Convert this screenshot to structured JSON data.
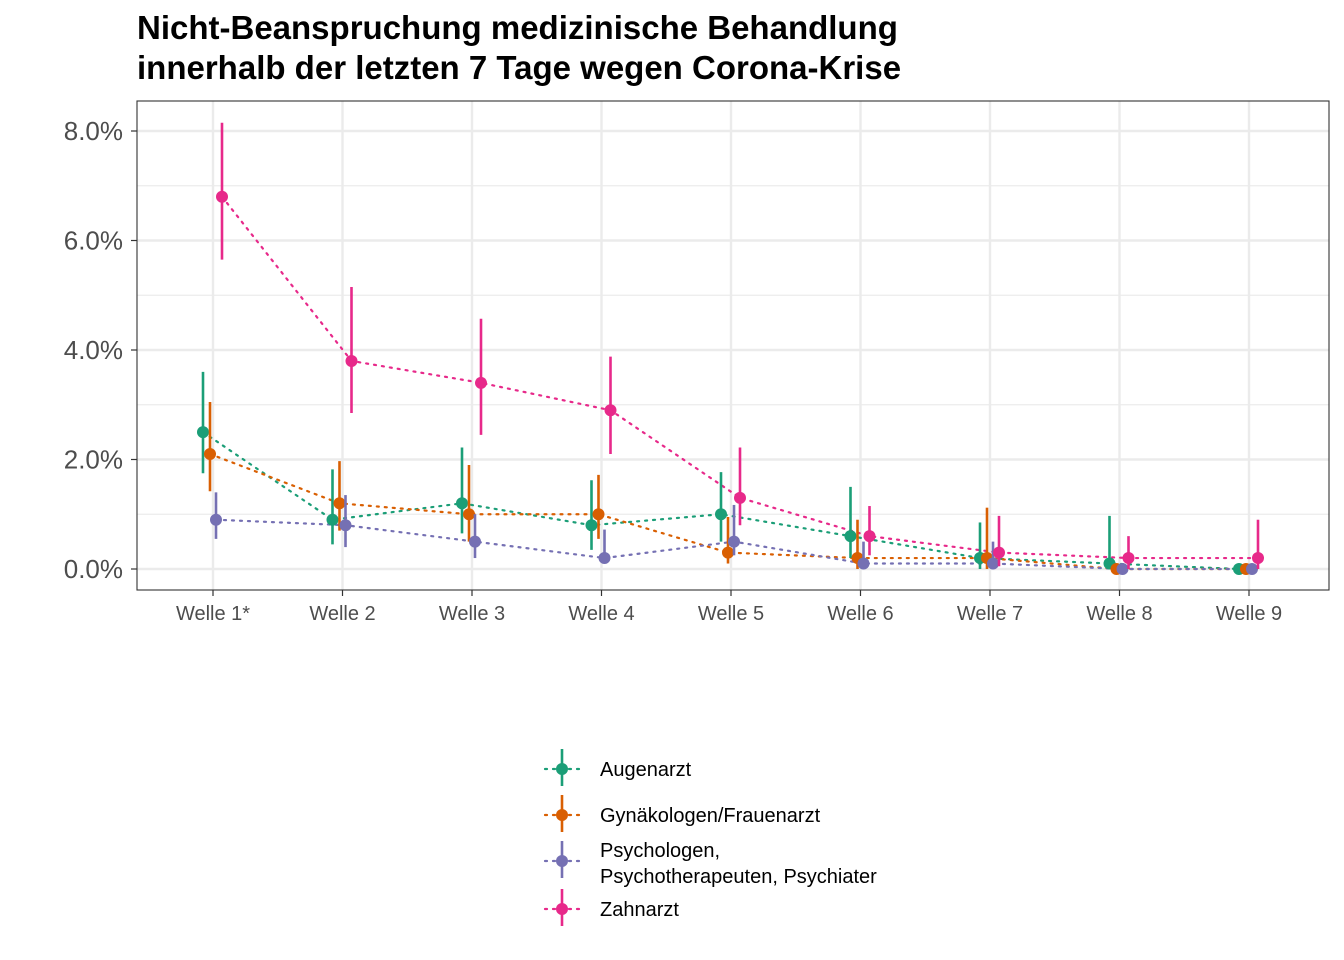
{
  "title_line1": "Nicht-Beanspruchung medizinische Behandlung",
  "title_line2": "innerhalb der letzten 7 Tage wegen Corona-Krise",
  "chart_data": {
    "type": "line",
    "categories": [
      "Welle 1*",
      "Welle 2",
      "Welle 3",
      "Welle 4",
      "Welle 5",
      "Welle 6",
      "Welle 7",
      "Welle 8",
      "Welle 9"
    ],
    "y_ticks": [
      "0.0%",
      "2.0%",
      "4.0%",
      "6.0%",
      "8.0%"
    ],
    "y_tick_values": [
      0,
      2,
      4,
      6,
      8
    ],
    "ylim": [
      -0.4,
      8.5
    ],
    "y_unit": "%",
    "grid": true,
    "legend_position": "bottom",
    "line_style": "dotted",
    "error_bars": true,
    "series": [
      {
        "name": "Augenarzt",
        "color": "#1b9e77",
        "values": [
          2.5,
          0.9,
          1.2,
          0.8,
          1.0,
          0.6,
          0.2,
          0.1,
          0.0
        ],
        "lower": [
          1.75,
          0.45,
          0.65,
          0.35,
          0.5,
          0.2,
          0.0,
          0.0,
          0.0
        ],
        "upper": [
          3.6,
          1.82,
          2.22,
          1.62,
          1.77,
          1.5,
          0.85,
          0.97,
          0.05
        ]
      },
      {
        "name": "Gynäkologen/Frauenarzt",
        "color": "#d95f02",
        "values": [
          2.1,
          1.2,
          1.0,
          1.0,
          0.3,
          0.2,
          0.2,
          0.0,
          0.0
        ],
        "lower": [
          1.42,
          0.7,
          0.5,
          0.55,
          0.1,
          0.0,
          0.0,
          0.0,
          0.0
        ],
        "upper": [
          3.05,
          1.97,
          1.9,
          1.72,
          0.95,
          0.9,
          1.12,
          0.05,
          0.05
        ]
      },
      {
        "name": "Psychologen,\nPsychotherapeuten, Psychiater",
        "name_lines": [
          "Psychologen,",
          "Psychotherapeuten, Psychiater"
        ],
        "color": "#7570b3",
        "values": [
          0.9,
          0.8,
          0.5,
          0.2,
          0.5,
          0.1,
          0.1,
          0.0,
          0.0
        ],
        "lower": [
          0.55,
          0.4,
          0.2,
          0.1,
          0.25,
          0.0,
          0.0,
          0.0,
          0.0
        ],
        "upper": [
          1.4,
          1.35,
          1.0,
          0.72,
          1.17,
          0.5,
          0.5,
          0.05,
          0.05
        ]
      },
      {
        "name": "Zahnarzt",
        "color": "#e7298a",
        "values": [
          6.8,
          3.8,
          3.4,
          2.9,
          1.3,
          0.6,
          0.3,
          0.2,
          0.2
        ],
        "lower": [
          5.65,
          2.85,
          2.45,
          2.1,
          0.8,
          0.25,
          0.05,
          0.0,
          0.0
        ],
        "upper": [
          8.15,
          5.15,
          4.57,
          3.88,
          2.22,
          1.15,
          0.97,
          0.6,
          0.9
        ]
      }
    ]
  }
}
